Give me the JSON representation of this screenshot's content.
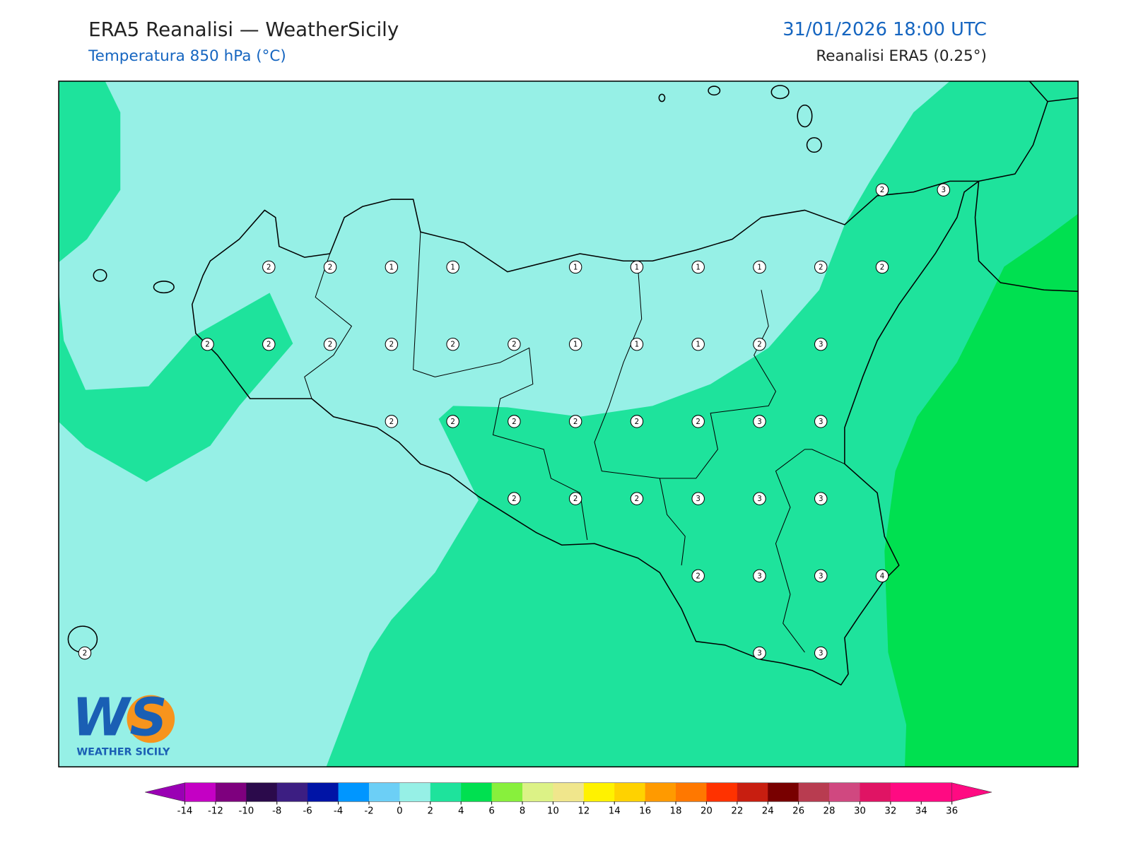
{
  "header": {
    "title": "ERA5 Reanalisi — WeatherSicily",
    "subtitle": "Temperatura 850 hPa (°C)",
    "datetime": "31/01/2026 18:00 UTC",
    "source": "Reanalisi ERA5 (0.25°)"
  },
  "map": {
    "grid_values": [
      2,
      3,
      2,
      2,
      1,
      1,
      1,
      1,
      1,
      1,
      2,
      2,
      2,
      2,
      2,
      2,
      2,
      2,
      1,
      1,
      1,
      2,
      3,
      2,
      2,
      2,
      2,
      2,
      2,
      3,
      3,
      2,
      2,
      2,
      3,
      3,
      3,
      2,
      3,
      3,
      4,
      2,
      3,
      3
    ]
  },
  "colorbar": {
    "ticks": [
      -14,
      -12,
      -10,
      -8,
      -6,
      -4,
      -2,
      0,
      2,
      4,
      6,
      8,
      10,
      12,
      14,
      16,
      18,
      20,
      22,
      24,
      26,
      28,
      30,
      32,
      34,
      36
    ],
    "colors": [
      "#c400c4",
      "#7e007e",
      "#2b0a4b",
      "#3c1e82",
      "#0014a6",
      "#0096ff",
      "#6ccff6",
      "#96f0e6",
      "#1ee39c",
      "#00e050",
      "#88f03c",
      "#dcf286",
      "#f0e68c",
      "#fff200",
      "#ffd200",
      "#ff9a00",
      "#ff7800",
      "#ff3200",
      "#c81e10",
      "#780000",
      "#b83c50",
      "#d04880",
      "#e01464",
      "#ff0a82",
      "#ff0a82"
    ],
    "under_color": "#9a00b4",
    "over_color": "#ff0a82"
  },
  "logo": {
    "mark": "WS",
    "text": "WEATHER SICILY"
  }
}
